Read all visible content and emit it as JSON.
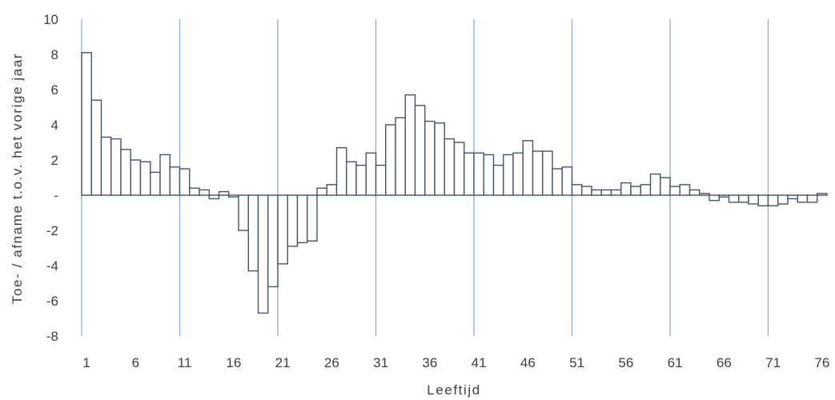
{
  "chart_data": {
    "type": "bar",
    "xlabel": "Leeftijd",
    "ylabel": "Toe- / afname t.o.v. het vorige jaar",
    "ylim": [
      -8,
      10
    ],
    "yticks": [
      10,
      8,
      6,
      4,
      2,
      0,
      -2,
      -4,
      -6,
      -8
    ],
    "ytick_labels": [
      "10",
      "8",
      "6",
      "4",
      "2",
      "-",
      "-2",
      "-4",
      "-6",
      "-8"
    ],
    "xticks": [
      1,
      6,
      11,
      16,
      21,
      26,
      31,
      36,
      41,
      46,
      51,
      56,
      61,
      66,
      71,
      76
    ],
    "xtick_labels": [
      "1",
      "6",
      "11",
      "16",
      "21",
      "26",
      "31",
      "36",
      "41",
      "46",
      "51",
      "56",
      "61",
      "66",
      "71",
      "76"
    ],
    "vertical_grid_at": [
      1,
      11,
      21,
      31,
      41,
      51,
      61,
      71
    ],
    "bar_fill": "#ffffff",
    "bar_stroke": "#44546a",
    "grid_color": "#8eaadb",
    "categories": [
      1,
      2,
      3,
      4,
      5,
      6,
      7,
      8,
      9,
      10,
      11,
      12,
      13,
      14,
      15,
      16,
      17,
      18,
      19,
      20,
      21,
      22,
      23,
      24,
      25,
      26,
      27,
      28,
      29,
      30,
      31,
      32,
      33,
      34,
      35,
      36,
      37,
      38,
      39,
      40,
      41,
      42,
      43,
      44,
      45,
      46,
      47,
      48,
      49,
      50,
      51,
      52,
      53,
      54,
      55,
      56,
      57,
      58,
      59,
      60,
      61,
      62,
      63,
      64,
      65,
      66,
      67,
      68,
      69,
      70,
      71,
      72,
      73,
      74,
      75,
      76
    ],
    "values": [
      8.1,
      5.4,
      3.3,
      3.2,
      2.6,
      2.0,
      1.9,
      1.3,
      2.3,
      1.6,
      1.5,
      0.4,
      0.3,
      -0.2,
      0.2,
      -0.1,
      -2.0,
      -4.3,
      -6.7,
      -5.2,
      -3.9,
      -2.9,
      -2.7,
      -2.6,
      0.4,
      0.6,
      2.7,
      1.9,
      1.7,
      2.4,
      1.7,
      4.0,
      4.4,
      5.7,
      5.1,
      4.2,
      4.1,
      3.2,
      3.0,
      2.4,
      2.4,
      2.3,
      1.7,
      2.3,
      2.4,
      3.1,
      2.5,
      2.5,
      1.5,
      1.6,
      0.6,
      0.5,
      0.3,
      0.3,
      0.3,
      0.7,
      0.5,
      0.6,
      1.2,
      1.0,
      0.5,
      0.6,
      0.3,
      0.1,
      -0.3,
      -0.1,
      -0.4,
      -0.4,
      -0.5,
      -0.6,
      -0.6,
      -0.5,
      -0.2,
      -0.4,
      -0.4,
      0.1
    ]
  }
}
